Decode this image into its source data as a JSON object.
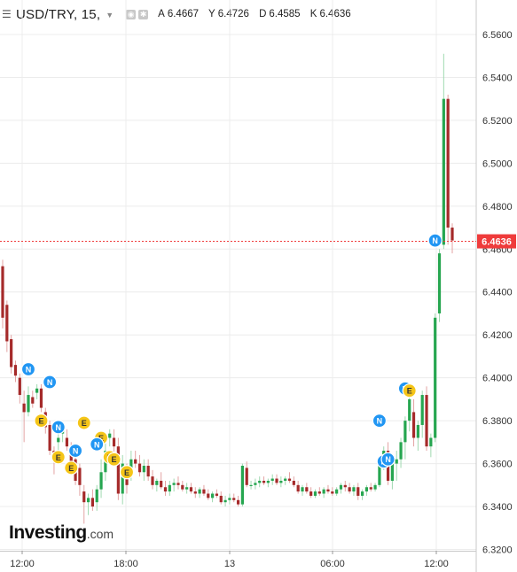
{
  "header": {
    "symbol": "USD/TRY, 15,",
    "open_label": "A",
    "open": "6.4667",
    "high_label": "Y",
    "high": "6.4726",
    "low_label": "D",
    "low": "6.4585",
    "close_label": "K",
    "close": "6.4636"
  },
  "logo": {
    "name": "Investing",
    "suffix": ".com"
  },
  "colors": {
    "up": "#26a650",
    "down": "#a52a2a",
    "price_tag": "#ef3b3b",
    "news": "#2196f3",
    "event": "#f5c518"
  },
  "chart_data": {
    "type": "candlestick",
    "title": "",
    "xlabel": "",
    "ylabel": "",
    "ylim": [
      6.32,
      6.575
    ],
    "grid": true,
    "y_ticks": [
      "6.3200",
      "6.3400",
      "6.3600",
      "6.3800",
      "6.4000",
      "6.4200",
      "6.4400",
      "6.4600",
      "6.4800",
      "6.5000",
      "6.5200",
      "6.5400",
      "6.5600"
    ],
    "x_ticks": [
      "12:00",
      "18:00",
      "13",
      "06:00",
      "12:00"
    ],
    "current_price": "6.4636",
    "candles": [
      [
        6.452,
        6.455,
        6.423,
        6.428
      ],
      [
        6.434,
        6.436,
        6.412,
        6.417
      ],
      [
        6.418,
        6.42,
        6.402,
        6.405
      ],
      [
        6.406,
        6.408,
        6.398,
        6.401
      ],
      [
        6.4,
        6.402,
        6.388,
        6.392
      ],
      [
        6.388,
        6.394,
        6.37,
        6.384
      ],
      [
        6.384,
        6.396,
        6.382,
        6.392
      ],
      [
        6.391,
        6.394,
        6.386,
        6.388
      ],
      [
        6.393,
        6.397,
        6.39,
        6.395
      ],
      [
        6.395,
        6.397,
        6.384,
        6.386
      ],
      [
        6.384,
        6.386,
        6.374,
        6.377
      ],
      [
        6.378,
        6.38,
        6.364,
        6.366
      ],
      [
        6.366,
        6.368,
        6.355,
        6.364
      ],
      [
        6.37,
        6.374,
        6.36,
        6.372
      ],
      [
        6.374,
        6.378,
        6.37,
        6.377
      ],
      [
        6.372,
        6.376,
        6.366,
        6.368
      ],
      [
        6.366,
        6.37,
        6.355,
        6.358
      ],
      [
        6.362,
        6.364,
        6.35,
        6.352
      ],
      [
        6.358,
        6.36,
        6.345,
        6.35
      ],
      [
        6.347,
        6.35,
        6.332,
        6.342
      ],
      [
        6.342,
        6.346,
        6.336,
        6.344
      ],
      [
        6.344,
        6.348,
        6.338,
        6.34
      ],
      [
        6.342,
        6.35,
        6.338,
        6.348
      ],
      [
        6.348,
        6.362,
        6.344,
        6.356
      ],
      [
        6.356,
        6.37,
        6.352,
        6.366
      ],
      [
        6.372,
        6.376,
        6.368,
        6.374
      ],
      [
        6.372,
        6.376,
        6.365,
        6.368
      ],
      [
        6.368,
        6.372,
        6.343,
        6.346
      ],
      [
        6.346,
        6.364,
        6.341,
        6.36
      ],
      [
        6.356,
        6.36,
        6.346,
        6.35
      ],
      [
        6.356,
        6.366,
        6.352,
        6.362
      ],
      [
        6.362,
        6.366,
        6.358,
        6.36
      ],
      [
        6.36,
        6.364,
        6.354,
        6.356
      ],
      [
        6.356,
        6.362,
        6.352,
        6.359
      ],
      [
        6.359,
        6.362,
        6.352,
        6.354
      ],
      [
        6.354,
        6.357,
        6.348,
        6.35
      ],
      [
        6.35,
        6.353,
        6.347,
        6.352
      ],
      [
        6.352,
        6.356,
        6.348,
        6.349
      ],
      [
        6.349,
        6.352,
        6.345,
        6.347
      ],
      [
        6.347,
        6.352,
        6.345,
        6.35
      ],
      [
        6.35,
        6.353,
        6.347,
        6.351
      ],
      [
        6.351,
        6.354,
        6.348,
        6.35
      ],
      [
        6.35,
        6.352,
        6.347,
        6.348
      ],
      [
        6.348,
        6.351,
        6.346,
        6.349
      ],
      [
        6.349,
        6.351,
        6.346,
        6.347
      ],
      [
        6.347,
        6.349,
        6.344,
        6.346
      ],
      [
        6.346,
        6.349,
        6.344,
        6.348
      ],
      [
        6.348,
        6.35,
        6.345,
        6.346
      ],
      [
        6.346,
        6.348,
        6.343,
        6.344
      ],
      [
        6.344,
        6.347,
        6.342,
        6.346
      ],
      [
        6.346,
        6.348,
        6.344,
        6.345
      ],
      [
        6.345,
        6.347,
        6.341,
        6.342
      ],
      [
        6.342,
        6.345,
        6.34,
        6.343
      ],
      [
        6.343,
        6.346,
        6.341,
        6.344
      ],
      [
        6.344,
        6.346,
        6.342,
        6.343
      ],
      [
        6.343,
        6.345,
        6.34,
        6.341
      ],
      [
        6.341,
        6.36,
        6.34,
        6.359
      ],
      [
        6.358,
        6.361,
        6.349,
        6.35
      ],
      [
        6.35,
        6.352,
        6.348,
        6.35
      ],
      [
        6.35,
        6.353,
        6.348,
        6.351
      ],
      [
        6.351,
        6.354,
        6.349,
        6.352
      ],
      [
        6.352,
        6.354,
        6.35,
        6.351
      ],
      [
        6.351,
        6.353,
        6.349,
        6.352
      ],
      [
        6.352,
        6.355,
        6.35,
        6.353
      ],
      [
        6.353,
        6.355,
        6.35,
        6.351
      ],
      [
        6.351,
        6.354,
        6.349,
        6.352
      ],
      [
        6.352,
        6.354,
        6.35,
        6.353
      ],
      [
        6.353,
        6.356,
        6.351,
        6.352
      ],
      [
        6.352,
        6.354,
        6.349,
        6.35
      ],
      [
        6.35,
        6.352,
        6.346,
        6.347
      ],
      [
        6.347,
        6.35,
        6.345,
        6.349
      ],
      [
        6.349,
        6.351,
        6.346,
        6.347
      ],
      [
        6.347,
        6.349,
        6.344,
        6.345
      ],
      [
        6.345,
        6.348,
        6.344,
        6.347
      ],
      [
        6.347,
        6.349,
        6.345,
        6.346
      ],
      [
        6.346,
        6.349,
        6.344,
        6.348
      ],
      [
        6.348,
        6.35,
        6.346,
        6.347
      ],
      [
        6.347,
        6.349,
        6.345,
        6.346
      ],
      [
        6.346,
        6.349,
        6.345,
        6.348
      ],
      [
        6.348,
        6.351,
        6.346,
        6.35
      ],
      [
        6.35,
        6.352,
        6.347,
        6.349
      ],
      [
        6.349,
        6.351,
        6.346,
        6.347
      ],
      [
        6.347,
        6.35,
        6.345,
        6.349
      ],
      [
        6.349,
        6.351,
        6.343,
        6.345
      ],
      [
        6.345,
        6.348,
        6.343,
        6.347
      ],
      [
        6.347,
        6.35,
        6.345,
        6.349
      ],
      [
        6.349,
        6.351,
        6.347,
        6.348
      ],
      [
        6.348,
        6.351,
        6.347,
        6.35
      ],
      [
        6.35,
        6.362,
        6.349,
        6.36
      ],
      [
        6.36,
        6.368,
        6.357,
        6.366
      ],
      [
        6.366,
        6.37,
        6.35,
        6.352
      ],
      [
        6.352,
        6.362,
        6.348,
        6.36
      ],
      [
        6.36,
        6.366,
        6.352,
        6.362
      ],
      [
        6.362,
        6.372,
        6.358,
        6.37
      ],
      [
        6.37,
        6.382,
        6.362,
        6.38
      ],
      [
        6.38,
        6.392,
        6.375,
        6.39
      ],
      [
        6.384,
        6.39,
        6.368,
        6.372
      ],
      [
        6.372,
        6.38,
        6.366,
        6.378
      ],
      [
        6.378,
        6.394,
        6.372,
        6.392
      ],
      [
        6.392,
        6.396,
        6.366,
        6.368
      ],
      [
        6.368,
        6.374,
        6.363,
        6.372
      ],
      [
        6.372,
        6.43,
        6.37,
        6.428
      ],
      [
        6.43,
        6.46,
        6.426,
        6.458
      ],
      [
        6.462,
        6.551,
        6.46,
        6.53
      ],
      [
        6.53,
        6.532,
        6.462,
        6.47
      ],
      [
        6.47,
        6.472,
        6.458,
        6.464
      ]
    ],
    "markers": [
      {
        "type": "N",
        "label": "N",
        "x_index": 6,
        "value": 6.404
      },
      {
        "type": "N",
        "label": "N",
        "x_index": 11,
        "value": 6.398
      },
      {
        "type": "E",
        "label": "E",
        "x_index": 9,
        "value": 6.38
      },
      {
        "type": "N",
        "label": "N",
        "x_index": 13,
        "value": 6.377
      },
      {
        "type": "E",
        "label": "E",
        "x_index": 13,
        "value": 6.363
      },
      {
        "type": "E",
        "label": "E",
        "x_index": 16,
        "value": 6.358
      },
      {
        "type": "N",
        "label": "N",
        "x_index": 17,
        "value": 6.366
      },
      {
        "type": "E",
        "label": "E",
        "x_index": 19,
        "value": 6.379
      },
      {
        "type": "E",
        "label": "E",
        "x_index": 23,
        "value": 6.372
      },
      {
        "type": "N",
        "label": "N",
        "x_index": 22,
        "value": 6.369
      },
      {
        "type": "E",
        "label": "E",
        "x_index": 25,
        "value": 6.363
      },
      {
        "type": "E",
        "label": "E",
        "x_index": 26,
        "value": 6.362
      },
      {
        "type": "E",
        "label": "E",
        "x_index": 29,
        "value": 6.356
      },
      {
        "type": "N",
        "label": "N",
        "x_index": 88,
        "value": 6.38
      },
      {
        "type": "N",
        "label": "N",
        "x_index": 89,
        "value": 6.361
      },
      {
        "type": "N",
        "label": "N",
        "x_index": 90,
        "value": 6.362
      },
      {
        "type": "N",
        "label": "N",
        "x_index": 94,
        "value": 6.395
      },
      {
        "type": "E",
        "label": "E",
        "x_index": 95,
        "value": 6.394
      },
      {
        "type": "N",
        "label": "N",
        "x_index": 101,
        "value": 6.464
      }
    ]
  }
}
